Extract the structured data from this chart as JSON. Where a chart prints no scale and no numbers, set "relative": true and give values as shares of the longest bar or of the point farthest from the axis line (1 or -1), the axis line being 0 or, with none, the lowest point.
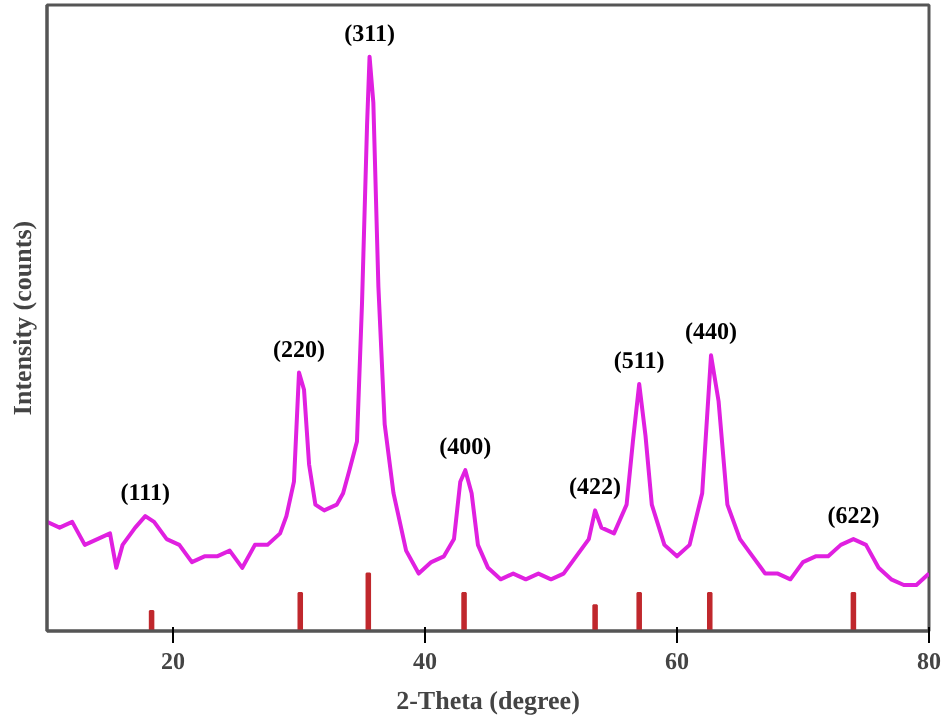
{
  "chart_data": {
    "type": "line",
    "xlabel": "2-Theta (degree)",
    "ylabel": "Intensity (counts)",
    "relative": true,
    "xlim": [
      10,
      80
    ],
    "xticks": [
      20,
      40,
      60,
      80
    ],
    "grid": false,
    "marker": "none",
    "series": [
      {
        "color": "#e020e0",
        "x": [
          10,
          11,
          12,
          13,
          14,
          15,
          15.5,
          16,
          17,
          17.8,
          18.5,
          19.5,
          20.5,
          21.5,
          22.5,
          23.5,
          24.5,
          25.5,
          26.5,
          27.5,
          28.5,
          29,
          29.6,
          30,
          30.4,
          30.8,
          31.3,
          32,
          33,
          33.5,
          34,
          34.6,
          35,
          35.4,
          35.6,
          35.9,
          36.3,
          36.8,
          37.5,
          38.5,
          39.5,
          40.5,
          41.5,
          42.3,
          42.8,
          43.2,
          43.7,
          44.2,
          45,
          46,
          47,
          48,
          49,
          50,
          51,
          52,
          53,
          53.5,
          54,
          55,
          56,
          56.5,
          57,
          57.5,
          58,
          59,
          60,
          61,
          62,
          62.7,
          63.3,
          64,
          65,
          66,
          67,
          68,
          69,
          70,
          71,
          72,
          73,
          74,
          75,
          76,
          77,
          78,
          79,
          80
        ],
        "values": [
          0.19,
          0.18,
          0.19,
          0.15,
          0.16,
          0.17,
          0.11,
          0.15,
          0.18,
          0.2,
          0.19,
          0.16,
          0.15,
          0.12,
          0.13,
          0.13,
          0.14,
          0.11,
          0.15,
          0.15,
          0.17,
          0.2,
          0.26,
          0.45,
          0.42,
          0.29,
          0.22,
          0.21,
          0.22,
          0.24,
          0.28,
          0.33,
          0.57,
          0.88,
          1.0,
          0.92,
          0.6,
          0.36,
          0.24,
          0.14,
          0.1,
          0.12,
          0.13,
          0.16,
          0.26,
          0.28,
          0.24,
          0.15,
          0.11,
          0.09,
          0.1,
          0.09,
          0.1,
          0.09,
          0.1,
          0.13,
          0.16,
          0.21,
          0.18,
          0.17,
          0.22,
          0.33,
          0.43,
          0.34,
          0.22,
          0.15,
          0.13,
          0.15,
          0.24,
          0.48,
          0.4,
          0.22,
          0.16,
          0.13,
          0.1,
          0.1,
          0.09,
          0.12,
          0.13,
          0.13,
          0.15,
          0.16,
          0.15,
          0.11,
          0.09,
          0.08,
          0.08,
          0.1
        ]
      },
      {
        "type": "bar",
        "color": "#c0282d",
        "x": [
          18.3,
          30.1,
          35.5,
          43.1,
          53.5,
          57.0,
          62.6,
          74.0
        ],
        "values": [
          0.035,
          0.066,
          0.1,
          0.066,
          0.045,
          0.066,
          0.066,
          0.066
        ]
      }
    ],
    "annotations": [
      {
        "text": "(111)",
        "x": 17.8,
        "y": 0.2
      },
      {
        "text": "(220)",
        "x": 30,
        "y": 0.45
      },
      {
        "text": "(311)",
        "x": 35.6,
        "y": 1.0
      },
      {
        "text": "(400)",
        "x": 43.2,
        "y": 0.28
      },
      {
        "text": "(422)",
        "x": 53.5,
        "y": 0.21
      },
      {
        "text": "(511)",
        "x": 57,
        "y": 0.43
      },
      {
        "text": "(440)",
        "x": 62.7,
        "y": 0.48
      },
      {
        "text": "(622)",
        "x": 74,
        "y": 0.16
      }
    ]
  }
}
